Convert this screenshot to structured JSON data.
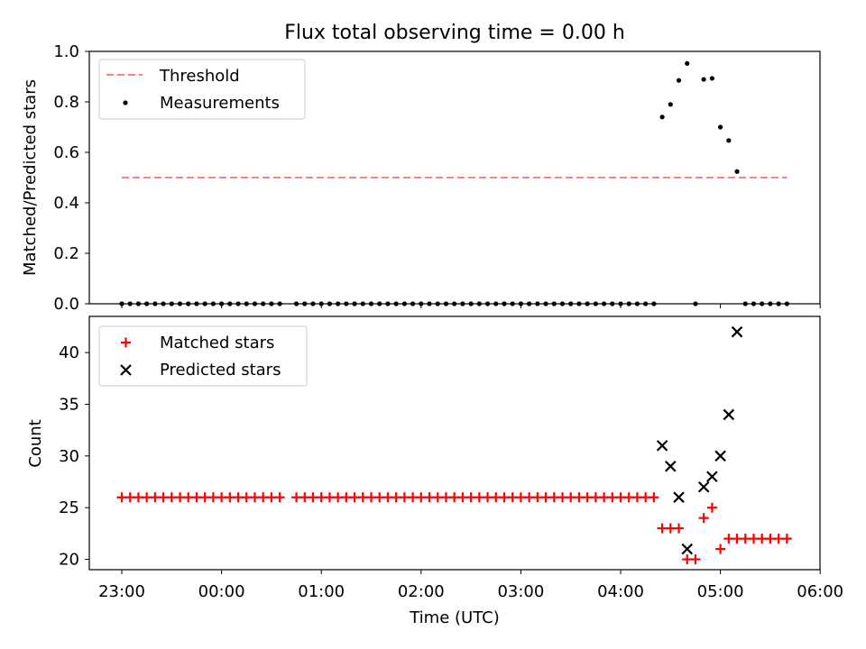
{
  "title": "Flux total observing time = 0.00 h",
  "chart_data": [
    {
      "type": "scatter",
      "ylabel": "Matched/Predicted stars",
      "xlabel": "",
      "ylim": [
        0,
        1.0
      ],
      "yticks": [
        0.0,
        0.2,
        0.4,
        0.6,
        0.8,
        1.0
      ],
      "ytick_labels": [
        "0.0",
        "0.2",
        "0.4",
        "0.6",
        "0.8",
        "1.0"
      ],
      "legend_position": "upper-left",
      "legend": [
        "Threshold",
        "Measurements"
      ],
      "series": [
        {
          "name": "Threshold",
          "kind": "dashed-line",
          "color": "#ff7f7f",
          "x": [
            "23:00",
            "05:40"
          ],
          "y": [
            0.5,
            0.5
          ]
        },
        {
          "name": "Measurements",
          "kind": "dots",
          "color": "#000000",
          "points": [
            [
              "23:00",
              0.0
            ],
            [
              "23:05",
              0.0
            ],
            [
              "23:10",
              0.0
            ],
            [
              "23:15",
              0.0
            ],
            [
              "23:20",
              0.0
            ],
            [
              "23:25",
              0.0
            ],
            [
              "23:30",
              0.0
            ],
            [
              "23:35",
              0.0
            ],
            [
              "23:40",
              0.0
            ],
            [
              "23:45",
              0.0
            ],
            [
              "23:50",
              0.0
            ],
            [
              "23:55",
              0.0
            ],
            [
              "00:00",
              0.0
            ],
            [
              "00:05",
              0.0
            ],
            [
              "00:10",
              0.0
            ],
            [
              "00:15",
              0.0
            ],
            [
              "00:20",
              0.0
            ],
            [
              "00:25",
              0.0
            ],
            [
              "00:30",
              0.0
            ],
            [
              "00:35",
              0.0
            ],
            [
              "00:45",
              0.0
            ],
            [
              "00:50",
              0.0
            ],
            [
              "00:55",
              0.0
            ],
            [
              "01:00",
              0.0
            ],
            [
              "01:05",
              0.0
            ],
            [
              "01:10",
              0.0
            ],
            [
              "01:15",
              0.0
            ],
            [
              "01:20",
              0.0
            ],
            [
              "01:25",
              0.0
            ],
            [
              "01:30",
              0.0
            ],
            [
              "01:35",
              0.0
            ],
            [
              "01:40",
              0.0
            ],
            [
              "01:45",
              0.0
            ],
            [
              "01:50",
              0.0
            ],
            [
              "01:55",
              0.0
            ],
            [
              "02:00",
              0.0
            ],
            [
              "02:05",
              0.0
            ],
            [
              "02:10",
              0.0
            ],
            [
              "02:15",
              0.0
            ],
            [
              "02:20",
              0.0
            ],
            [
              "02:25",
              0.0
            ],
            [
              "02:30",
              0.0
            ],
            [
              "02:35",
              0.0
            ],
            [
              "02:40",
              0.0
            ],
            [
              "02:45",
              0.0
            ],
            [
              "02:50",
              0.0
            ],
            [
              "02:55",
              0.0
            ],
            [
              "03:00",
              0.0
            ],
            [
              "03:05",
              0.0
            ],
            [
              "03:10",
              0.0
            ],
            [
              "03:15",
              0.0
            ],
            [
              "03:20",
              0.0
            ],
            [
              "03:25",
              0.0
            ],
            [
              "03:30",
              0.0
            ],
            [
              "03:35",
              0.0
            ],
            [
              "03:40",
              0.0
            ],
            [
              "03:45",
              0.0
            ],
            [
              "03:50",
              0.0
            ],
            [
              "03:55",
              0.0
            ],
            [
              "04:00",
              0.0
            ],
            [
              "04:05",
              0.0
            ],
            [
              "04:10",
              0.0
            ],
            [
              "04:15",
              0.0
            ],
            [
              "04:20",
              0.0
            ],
            [
              "04:25",
              0.74
            ],
            [
              "04:30",
              0.79
            ],
            [
              "04:35",
              0.885
            ],
            [
              "04:40",
              0.952
            ],
            [
              "04:45",
              0.0
            ],
            [
              "04:50",
              0.889
            ],
            [
              "04:55",
              0.893
            ],
            [
              "05:00",
              0.7
            ],
            [
              "05:05",
              0.647
            ],
            [
              "05:10",
              0.524
            ],
            [
              "05:15",
              0.0
            ],
            [
              "05:20",
              0.0
            ],
            [
              "05:25",
              0.0
            ],
            [
              "05:30",
              0.0
            ],
            [
              "05:35",
              0.0
            ],
            [
              "05:40",
              0.0
            ]
          ]
        }
      ]
    },
    {
      "type": "scatter",
      "ylabel": "Count",
      "xlabel": "Time (UTC)",
      "ylim": [
        19,
        43.5
      ],
      "yticks": [
        20,
        25,
        30,
        35,
        40
      ],
      "ytick_labels": [
        "20",
        "25",
        "30",
        "35",
        "40"
      ],
      "xticks": [
        "23:00",
        "00:00",
        "01:00",
        "02:00",
        "03:00",
        "04:00",
        "05:00",
        "06:00"
      ],
      "xtick_labels": [
        "23:00",
        "00:00",
        "01:00",
        "02:00",
        "03:00",
        "04:00",
        "05:00",
        "06:00"
      ],
      "legend_position": "upper-left",
      "legend": [
        "Matched stars",
        "Predicted stars"
      ],
      "series": [
        {
          "name": "Matched stars",
          "kind": "plus",
          "color": "#ff0000",
          "points": [
            [
              "23:00",
              26
            ],
            [
              "23:05",
              26
            ],
            [
              "23:10",
              26
            ],
            [
              "23:15",
              26
            ],
            [
              "23:20",
              26
            ],
            [
              "23:25",
              26
            ],
            [
              "23:30",
              26
            ],
            [
              "23:35",
              26
            ],
            [
              "23:40",
              26
            ],
            [
              "23:45",
              26
            ],
            [
              "23:50",
              26
            ],
            [
              "23:55",
              26
            ],
            [
              "00:00",
              26
            ],
            [
              "00:05",
              26
            ],
            [
              "00:10",
              26
            ],
            [
              "00:15",
              26
            ],
            [
              "00:20",
              26
            ],
            [
              "00:25",
              26
            ],
            [
              "00:30",
              26
            ],
            [
              "00:35",
              26
            ],
            [
              "00:45",
              26
            ],
            [
              "00:50",
              26
            ],
            [
              "00:55",
              26
            ],
            [
              "01:00",
              26
            ],
            [
              "01:05",
              26
            ],
            [
              "01:10",
              26
            ],
            [
              "01:15",
              26
            ],
            [
              "01:20",
              26
            ],
            [
              "01:25",
              26
            ],
            [
              "01:30",
              26
            ],
            [
              "01:35",
              26
            ],
            [
              "01:40",
              26
            ],
            [
              "01:45",
              26
            ],
            [
              "01:50",
              26
            ],
            [
              "01:55",
              26
            ],
            [
              "02:00",
              26
            ],
            [
              "02:05",
              26
            ],
            [
              "02:10",
              26
            ],
            [
              "02:15",
              26
            ],
            [
              "02:20",
              26
            ],
            [
              "02:25",
              26
            ],
            [
              "02:30",
              26
            ],
            [
              "02:35",
              26
            ],
            [
              "02:40",
              26
            ],
            [
              "02:45",
              26
            ],
            [
              "02:50",
              26
            ],
            [
              "02:55",
              26
            ],
            [
              "03:00",
              26
            ],
            [
              "03:05",
              26
            ],
            [
              "03:10",
              26
            ],
            [
              "03:15",
              26
            ],
            [
              "03:20",
              26
            ],
            [
              "03:25",
              26
            ],
            [
              "03:30",
              26
            ],
            [
              "03:35",
              26
            ],
            [
              "03:40",
              26
            ],
            [
              "03:45",
              26
            ],
            [
              "03:50",
              26
            ],
            [
              "03:55",
              26
            ],
            [
              "04:00",
              26
            ],
            [
              "04:05",
              26
            ],
            [
              "04:10",
              26
            ],
            [
              "04:15",
              26
            ],
            [
              "04:20",
              26
            ],
            [
              "04:25",
              23
            ],
            [
              "04:30",
              23
            ],
            [
              "04:35",
              23
            ],
            [
              "04:40",
              20
            ],
            [
              "04:45",
              20
            ],
            [
              "04:50",
              24
            ],
            [
              "04:55",
              25
            ],
            [
              "05:00",
              21
            ],
            [
              "05:05",
              22
            ],
            [
              "05:10",
              22
            ],
            [
              "05:15",
              22
            ],
            [
              "05:20",
              22
            ],
            [
              "05:25",
              22
            ],
            [
              "05:30",
              22
            ],
            [
              "05:35",
              22
            ],
            [
              "05:40",
              22
            ]
          ]
        },
        {
          "name": "Predicted stars",
          "kind": "x",
          "color": "#000000",
          "points": [
            [
              "04:25",
              31
            ],
            [
              "04:30",
              29
            ],
            [
              "04:35",
              26
            ],
            [
              "04:40",
              21
            ],
            [
              "04:50",
              27
            ],
            [
              "04:55",
              28
            ],
            [
              "05:00",
              30
            ],
            [
              "05:05",
              34
            ],
            [
              "05:10",
              42
            ]
          ]
        }
      ]
    }
  ]
}
